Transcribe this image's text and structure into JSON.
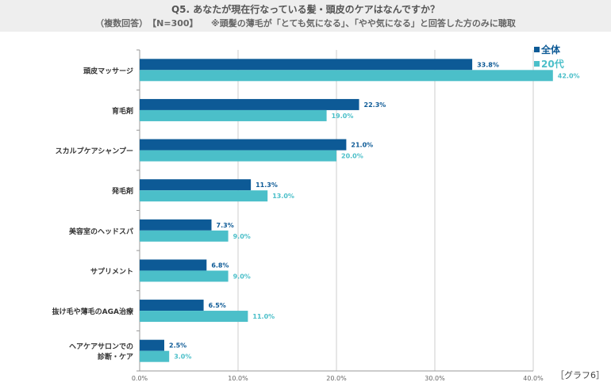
{
  "header": {
    "title": "Q5. あなたが現在行なっている髪・頭皮のケアはなんですか？",
    "subtitle": "（複数回答）　【N=300】　　※頭髪の薄毛が「とても気になる」、「やや気になる」と回答した方のみに聴取"
  },
  "figure_label": "［グラフ6］",
  "colors": {
    "overall": "#0d5a96",
    "twenties": "#4bbfc9",
    "grid": "#cccccc",
    "axis": "#999999"
  },
  "chart_data": {
    "type": "bar",
    "orientation": "horizontal",
    "categories": [
      "頭皮マッサージ",
      "育毛剤",
      "スカルプケアシャンプー",
      "発毛剤",
      "美容室のヘッドスパ",
      "サプリメント",
      "抜け毛や薄毛のAGA治療",
      "ヘアケアサロンでの\n診断・ケア"
    ],
    "series": [
      {
        "name": "全体",
        "values": [
          33.8,
          22.3,
          21.0,
          11.3,
          7.3,
          6.8,
          6.5,
          2.5
        ],
        "labels": [
          "33.8%",
          "22.3%",
          "21.0%",
          "11.3%",
          "7.3%",
          "6.8%",
          "6.5%",
          "2.5%"
        ]
      },
      {
        "name": "20代",
        "values": [
          42.0,
          19.0,
          20.0,
          13.0,
          9.0,
          9.0,
          11.0,
          3.0
        ],
        "labels": [
          "42.0%",
          "19.0%",
          "20.0%",
          "13.0%",
          "9.0%",
          "9.0%",
          "11.0%",
          "3.0%"
        ]
      }
    ],
    "xlim": [
      0,
      40
    ],
    "xticks": [
      "0.0%",
      "10.0%",
      "20.0%",
      "30.0%",
      "40.0%"
    ],
    "legend_position": "top-right",
    "grid": true
  }
}
